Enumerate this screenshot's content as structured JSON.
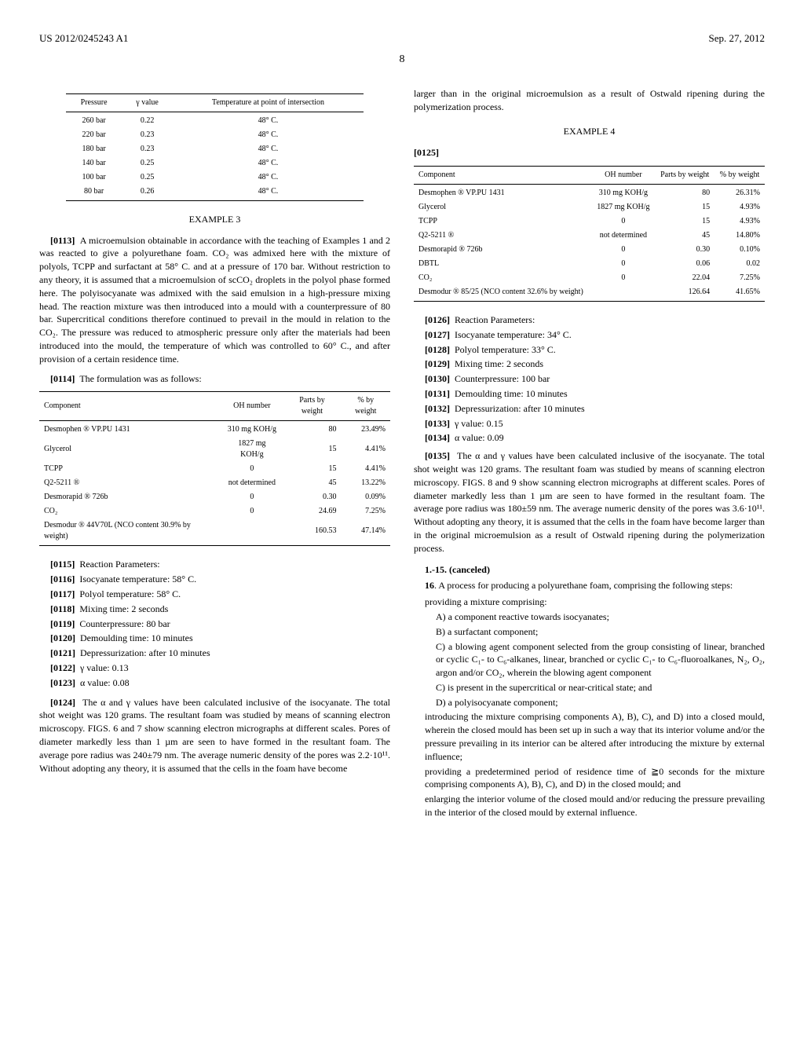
{
  "header": {
    "pub_number": "US 2012/0245243 A1",
    "date": "Sep. 27, 2012",
    "page": "8"
  },
  "table1": {
    "headers": [
      "Pressure",
      "γ value",
      "Temperature at point of intersection"
    ],
    "rows": [
      [
        "260 bar",
        "0.22",
        "48° C."
      ],
      [
        "220 bar",
        "0.23",
        "48° C."
      ],
      [
        "180 bar",
        "0.23",
        "48° C."
      ],
      [
        "140 bar",
        "0.25",
        "48° C."
      ],
      [
        "100 bar",
        "0.25",
        "48° C."
      ],
      [
        "80 bar",
        "0.26",
        "48° C."
      ]
    ]
  },
  "example3": {
    "heading": "EXAMPLE 3",
    "p0113_num": "[0113]",
    "p0113": "A microemulsion obtainable in accordance with the teaching of Examples 1 and 2 was reacted to give a polyurethane foam. CO₂ was admixed here with the mixture of polyols, TCPP and surfactant at 58° C. and at a pressure of 170 bar. Without restriction to any theory, it is assumed that a microemulsion of scCO₂ droplets in the polyol phase formed here. The polyisocyanate was admixed with the said emulsion in a high-pressure mixing head. The reaction mixture was then introduced into a mould with a counterpressure of 80 bar. Supercritical conditions therefore continued to prevail in the mould in relation to the CO₂. The pressure was reduced to atmospheric pressure only after the materials had been introduced into the mould, the temperature of which was controlled to 60° C., and after provision of a certain residence time.",
    "p0114_num": "[0114]",
    "p0114": "The formulation was as follows:"
  },
  "table2": {
    "headers": [
      "Component",
      "OH number",
      "Parts by weight",
      "% by weight"
    ],
    "rows": [
      [
        "Desmophen ® VP.PU 1431",
        "310 mg KOH/g",
        "80",
        "23.49%"
      ],
      [
        "Glycerol",
        "1827 mg KOH/g",
        "15",
        "4.41%"
      ],
      [
        "TCPP",
        "0",
        "15",
        "4.41%"
      ],
      [
        "Q2-5211 ®",
        "not determined",
        "45",
        "13.22%"
      ],
      [
        "Desmorapid ® 726b",
        "0",
        "0.30",
        "0.09%"
      ],
      [
        "CO₂",
        "0",
        "24.69",
        "7.25%"
      ],
      [
        "Desmodur ® 44V70L (NCO content 30.9% by weight)",
        "",
        "160.53",
        "47.14%"
      ]
    ]
  },
  "params3": {
    "p0115": {
      "num": "[0115]",
      "text": "Reaction Parameters:"
    },
    "p0116": {
      "num": "[0116]",
      "text": "Isocyanate temperature: 58° C."
    },
    "p0117": {
      "num": "[0117]",
      "text": "Polyol temperature: 58° C."
    },
    "p0118": {
      "num": "[0118]",
      "text": "Mixing time: 2 seconds"
    },
    "p0119": {
      "num": "[0119]",
      "text": "Counterpressure: 80 bar"
    },
    "p0120": {
      "num": "[0120]",
      "text": "Demoulding time: 10 minutes"
    },
    "p0121": {
      "num": "[0121]",
      "text": "Depressurization: after 10 minutes"
    },
    "p0122": {
      "num": "[0122]",
      "text": "γ value: 0.13"
    },
    "p0123": {
      "num": "[0123]",
      "text": "α value: 0.08"
    }
  },
  "p0124_num": "[0124]",
  "p0124": "The α and γ values have been calculated inclusive of the isocyanate. The total shot weight was 120 grams. The resultant foam was studied by means of scanning electron microscopy. FIGS. 6 and 7 show scanning electron micrographs at different scales. Pores of diameter markedly less than 1 µm are seen to have formed in the resultant foam. The average pore radius was 240±79 nm. The average numeric density of the pores was 2.2·10¹¹. Without adopting any theory, it is assumed that the cells in the foam have become",
  "col2_top": "larger than in the original microemulsion as a result of Ostwald ripening during the polymerization process.",
  "example4": {
    "heading": "EXAMPLE 4",
    "p0125_num": "[0125]"
  },
  "table3": {
    "headers": [
      "Component",
      "OH number",
      "Parts by weight",
      "% by weight"
    ],
    "rows": [
      [
        "Desmophen ® VP.PU 1431",
        "310 mg KOH/g",
        "80",
        "26.31%"
      ],
      [
        "Glycerol",
        "1827 mg KOH/g",
        "15",
        "4.93%"
      ],
      [
        "TCPP",
        "0",
        "15",
        "4.93%"
      ],
      [
        "Q2-5211 ®",
        "not determined",
        "45",
        "14.80%"
      ],
      [
        "Desmorapid ® 726b",
        "0",
        "0.30",
        "0.10%"
      ],
      [
        "DBTL",
        "0",
        "0.06",
        "0.02"
      ],
      [
        "CO₂",
        "0",
        "22.04",
        "7.25%"
      ],
      [
        "Desmodur ® 85/25 (NCO content 32.6% by weight)",
        "",
        "126.64",
        "41.65%"
      ]
    ]
  },
  "params4": {
    "p0126": {
      "num": "[0126]",
      "text": "Reaction Parameters:"
    },
    "p0127": {
      "num": "[0127]",
      "text": "Isocyanate temperature: 34° C."
    },
    "p0128": {
      "num": "[0128]",
      "text": "Polyol temperature: 33° C."
    },
    "p0129": {
      "num": "[0129]",
      "text": "Mixing time: 2 seconds"
    },
    "p0130": {
      "num": "[0130]",
      "text": "Counterpressure: 100 bar"
    },
    "p0131": {
      "num": "[0131]",
      "text": "Demoulding time: 10 minutes"
    },
    "p0132": {
      "num": "[0132]",
      "text": "Depressurization: after 10 minutes"
    },
    "p0133": {
      "num": "[0133]",
      "text": "γ value: 0.15"
    },
    "p0134": {
      "num": "[0134]",
      "text": "α value: 0.09"
    }
  },
  "p0135_num": "[0135]",
  "p0135": "The α and γ values have been calculated inclusive of the isocyanate. The total shot weight was 120 grams. The resultant foam was studied by means of scanning electron microscopy. FIGS. 8 and 9 show scanning electron micrographs at different scales. Pores of diameter markedly less than 1 µm are seen to have formed in the resultant foam. The average pore radius was 180±59 nm. The average numeric density of the pores was 3.6·10¹¹. Without adopting any theory, it is assumed that the cells in the foam have become larger than in the original microemulsion as a result of Ostwald ripening during the polymerization process.",
  "claims": {
    "c1_15": "1.-15. (canceled)",
    "c16_lead": "16. A process for producing a polyurethane foam, comprising the following steps:",
    "providing": "providing a mixture comprising:",
    "cA": "A) a component reactive towards isocyanates;",
    "cB": "B) a surfactant component;",
    "cC": "C) a blowing agent component selected from the group consisting of linear, branched or cyclic C₁- to C₆-alkanes, linear, branched or cyclic C₁- to C₆-fluoroalkanes, N₂, O₂, argon and/or CO₂, wherein the blowing agent component",
    "cC2": "C) is present in the supercritical or near-critical state; and",
    "cD": "D) a polyisocyanate component;",
    "intro": "introducing the mixture comprising components A), B), C), and D) into a closed mould, wherein the closed mould has been set up in such a way that its interior volume and/or the pressure prevailing in its interior can be altered after introducing the mixture by external influence;",
    "prov": "providing a predetermined period of residence time of ≧0 seconds for the mixture comprising components A), B), C), and D) in the closed mould; and",
    "enl": "enlarging the interior volume of the closed mould and/or reducing the pressure prevailing in the interior of the closed mould by external influence."
  }
}
